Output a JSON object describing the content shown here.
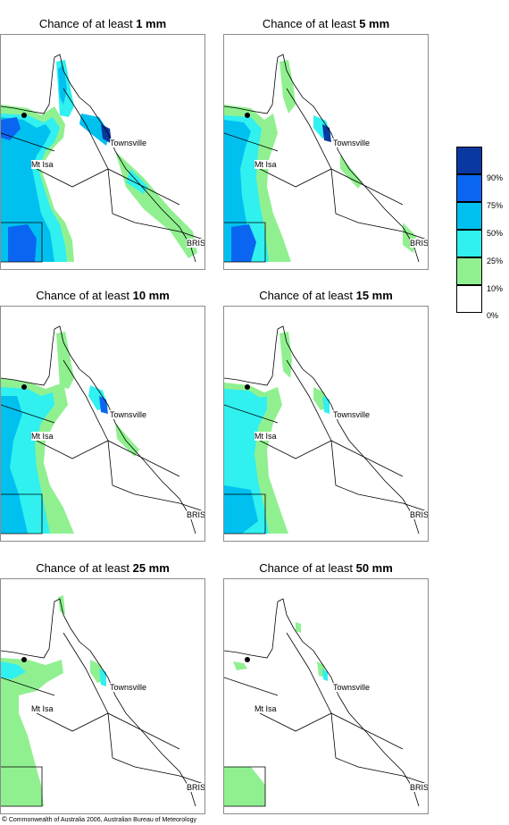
{
  "panels": [
    {
      "title_prefix": "Chance of at least ",
      "threshold": "1 mm",
      "labels": {
        "townsville": "Townsville",
        "mtisa": "Mt Isa",
        "bris": "BRIS"
      }
    },
    {
      "title_prefix": "Chance of at least ",
      "threshold": "5 mm",
      "labels": {
        "townsville": "Townsville",
        "mtisa": "Mt Isa",
        "bris": "BRIS"
      }
    },
    {
      "title_prefix": "Chance of at least ",
      "threshold": "10 mm",
      "labels": {
        "townsville": "Townsville",
        "mtisa": "Mt Isa",
        "bris": "BRIS"
      }
    },
    {
      "title_prefix": "Chance of at least ",
      "threshold": "15 mm",
      "labels": {
        "townsville": "Townsville",
        "mtisa": "Mt Isa",
        "bris": "BRIS"
      }
    },
    {
      "title_prefix": "Chance of at least ",
      "threshold": "25 mm",
      "labels": {
        "townsville": "Townsville",
        "mtisa": "Mt Isa",
        "bris": "BRIS"
      }
    },
    {
      "title_prefix": "Chance of at least ",
      "threshold": "50 mm",
      "labels": {
        "townsville": "Townsville",
        "mtisa": "Mt Isa",
        "bris": "BRIS"
      }
    }
  ],
  "legend": {
    "labels": [
      "90%",
      "75%",
      "50%",
      "25%",
      "10%",
      "0%"
    ],
    "colors": [
      "#0a37a0",
      "#0a66f0",
      "#00c0f0",
      "#30f0f0",
      "#90f090",
      "#ffffff"
    ]
  },
  "colors": {
    "c10": "#90f090",
    "c25": "#30f0f0",
    "c50": "#00c0f0",
    "c75": "#0a66f0",
    "c90": "#0a37a0",
    "outline": "#000000",
    "border": "#8c8c8c"
  },
  "copyright": {
    "symbol": "©",
    "text": "Commonwealth of Australia 2006, Australian Bureau of Meteorology"
  }
}
